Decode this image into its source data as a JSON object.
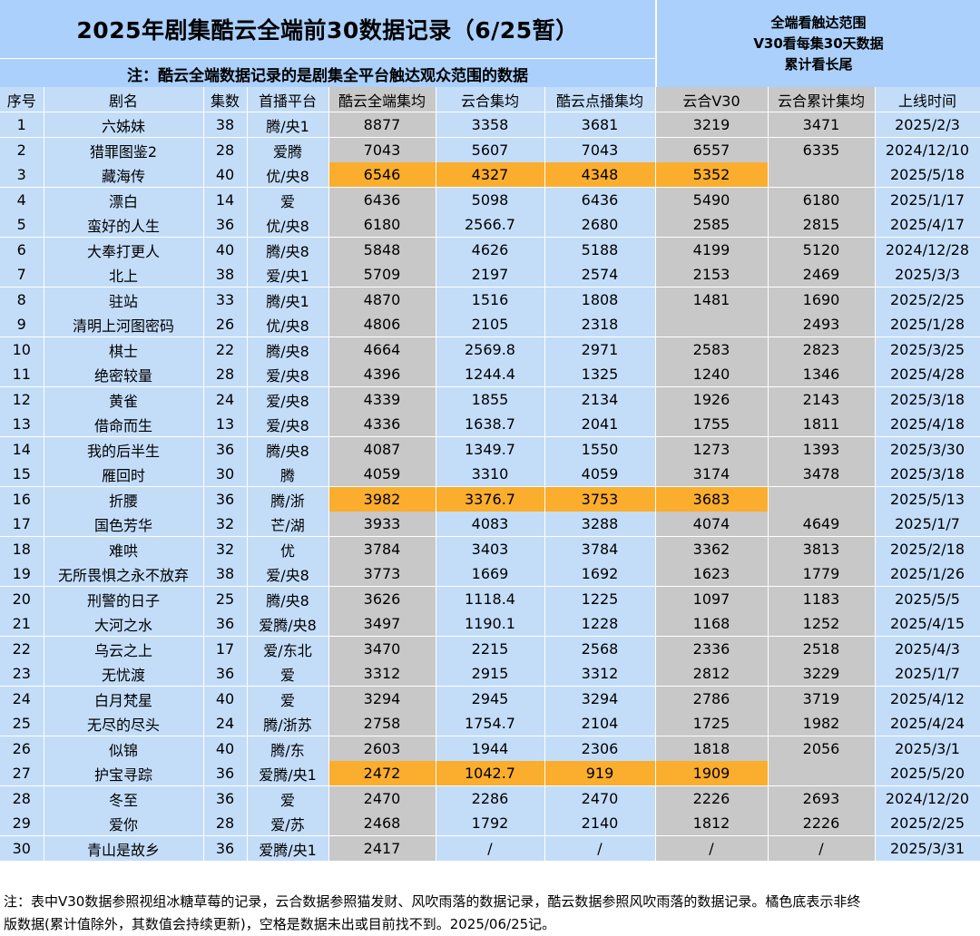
{
  "title": "2025年剧集酷云全端前30数据记录（6/25暂）",
  "subtitle": "注：酷云全端数据记录的是剧集全平台触达观众范围的数据",
  "side_notes": [
    "全端看触达范围",
    "V30看每集30天数据",
    "累计看长尾"
  ],
  "columns": [
    "序号",
    "剧名",
    "集数",
    "首播平台",
    "酷云全端集均",
    "云合集均",
    "酷云点播集均",
    "云合V30",
    "云合累计集均",
    "上线时间"
  ],
  "rows": [
    [
      "1",
      "六姊妹",
      "38",
      "腾/央1",
      "8877",
      "3358",
      "3681",
      "3219",
      "3471",
      "2025/2/3"
    ],
    [
      "2",
      "猎罪图鉴2",
      "28",
      "爱腾",
      "7043",
      "5607",
      "7043",
      "6557",
      "6335",
      "2024/12/10"
    ],
    [
      "3",
      "藏海传",
      "40",
      "优/央8",
      "6546",
      "4327",
      "4348",
      "5352",
      "",
      "2025/5/18"
    ],
    [
      "4",
      "漂白",
      "14",
      "爱",
      "6436",
      "5098",
      "6436",
      "5490",
      "6180",
      "2025/1/17"
    ],
    [
      "5",
      "蛮好的人生",
      "36",
      "优/央8",
      "6180",
      "2566.7",
      "2680",
      "2585",
      "2815",
      "2025/4/17"
    ],
    [
      "6",
      "大奉打更人",
      "40",
      "腾/央8",
      "5848",
      "4626",
      "5188",
      "4199",
      "5120",
      "2024/12/28"
    ],
    [
      "7",
      "北上",
      "38",
      "爱/央1",
      "5709",
      "2197",
      "2574",
      "2153",
      "2469",
      "2025/3/3"
    ],
    [
      "8",
      "驻站",
      "33",
      "腾/央1",
      "4870",
      "1516",
      "1808",
      "1481",
      "1690",
      "2025/2/25"
    ],
    [
      "9",
      "清明上河图密码",
      "26",
      "优/央8",
      "4806",
      "2105",
      "2318",
      "",
      "2493",
      "2025/1/28"
    ],
    [
      "10",
      "棋士",
      "22",
      "腾/央8",
      "4664",
      "2569.8",
      "2971",
      "2583",
      "2823",
      "2025/3/25"
    ],
    [
      "11",
      "绝密较量",
      "28",
      "爱/央8",
      "4396",
      "1244.4",
      "1325",
      "1240",
      "1346",
      "2025/4/28"
    ],
    [
      "12",
      "黄雀",
      "24",
      "爱/央8",
      "4339",
      "1855",
      "2134",
      "1926",
      "2143",
      "2025/3/18"
    ],
    [
      "13",
      "借命而生",
      "13",
      "爱/央8",
      "4336",
      "1638.7",
      "2041",
      "1755",
      "1811",
      "2025/4/18"
    ],
    [
      "14",
      "我的后半生",
      "36",
      "腾/央8",
      "4087",
      "1349.7",
      "1550",
      "1273",
      "1393",
      "2025/3/30"
    ],
    [
      "15",
      "雁回时",
      "30",
      "腾",
      "4059",
      "3310",
      "4059",
      "3174",
      "3478",
      "2025/3/18"
    ],
    [
      "16",
      "折腰",
      "36",
      "腾/浙",
      "3982",
      "3376.7",
      "3753",
      "3683",
      "",
      "2025/5/13"
    ],
    [
      "17",
      "国色芳华",
      "32",
      "芒/湖",
      "3933",
      "4083",
      "3288",
      "4074",
      "4649",
      "2025/1/7"
    ],
    [
      "18",
      "难哄",
      "32",
      "优",
      "3784",
      "3403",
      "3784",
      "3362",
      "3813",
      "2025/2/18"
    ],
    [
      "19",
      "无所畏惧之永不放弃",
      "38",
      "爱/央8",
      "3773",
      "1669",
      "1692",
      "1623",
      "1779",
      "2025/1/26"
    ],
    [
      "20",
      "刑警的日子",
      "25",
      "腾/央8",
      "3626",
      "1118.4",
      "1225",
      "1097",
      "1183",
      "2025/5/5"
    ],
    [
      "21",
      "大河之水",
      "36",
      "爱腾/央8",
      "3497",
      "1190.1",
      "1228",
      "1168",
      "1252",
      "2025/4/15"
    ],
    [
      "22",
      "乌云之上",
      "17",
      "爱/东北",
      "3470",
      "2215",
      "2568",
      "2336",
      "2518",
      "2025/4/3"
    ],
    [
      "23",
      "无忧渡",
      "36",
      "爱",
      "3312",
      "2915",
      "3312",
      "2812",
      "3229",
      "2025/1/7"
    ],
    [
      "24",
      "白月梵星",
      "40",
      "爱",
      "3294",
      "2945",
      "3294",
      "2786",
      "3719",
      "2025/4/12"
    ],
    [
      "25",
      "无尽的尽头",
      "24",
      "腾/浙苏",
      "2758",
      "1754.7",
      "2104",
      "1725",
      "1982",
      "2025/4/24"
    ],
    [
      "26",
      "似锦",
      "40",
      "腾/东",
      "2603",
      "1944",
      "2306",
      "1818",
      "2056",
      "2025/3/1"
    ],
    [
      "27",
      "护宝寻踪",
      "36",
      "爱腾/央1",
      "2472",
      "1042.7",
      "919",
      "1909",
      "",
      "2025/5/20"
    ],
    [
      "28",
      "冬至",
      "36",
      "爱",
      "2470",
      "2286",
      "2470",
      "2226",
      "2693",
      "2024/12/20"
    ],
    [
      "29",
      "爱你",
      "28",
      "爱/苏",
      "2468",
      "1792",
      "2140",
      "1812",
      "2226",
      "2025/2/25"
    ],
    [
      "30",
      "青山是故乡",
      "36",
      "爱腾/央1",
      "2417",
      "/",
      "/",
      "/",
      "/",
      "2025/3/31"
    ]
  ],
  "highlighted_rows": [
    "3",
    "16",
    "27"
  ],
  "footer": {
    "line1": "注：表中V30数据参照视组冰糖草莓的记录，云合数据参照猫发财、风吹雨落的数据记录，酷云数据参照风吹雨落的数据记录。橘色底表示非终",
    "line2": "版数据(累计值除外，其数值会持续更新)，空格是数据未出或目前找不到。2025/06/25记。"
  },
  "colors": {
    "header_blue": "#aad0fb",
    "cell_light_blue": "#c3ddf9",
    "cell_grey": "#c8c8c8",
    "highlight_orange": "#fbad2d"
  }
}
